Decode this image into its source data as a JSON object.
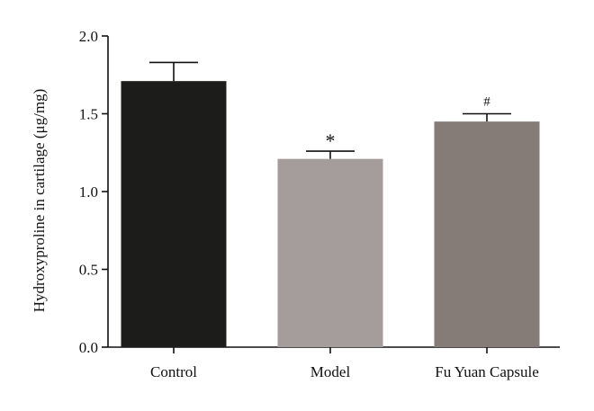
{
  "chart_data": {
    "type": "bar",
    "categories": [
      "Control",
      "Model",
      "Fu Yuan Capsule"
    ],
    "values": [
      1.71,
      1.21,
      1.45
    ],
    "errors": [
      0.12,
      0.05,
      0.05
    ],
    "annotations": [
      "",
      "*",
      "#"
    ],
    "colors": [
      "#1c1c1a",
      "#a59d9b",
      "#857c78"
    ],
    "ylabel": "Hydroxyproline in cartilage (μg/mg)",
    "ylim": [
      0,
      2.0
    ],
    "yticks": [
      0.0,
      0.5,
      1.0,
      1.5,
      2.0
    ],
    "ytick_labels": [
      "0.0",
      "0.5",
      "1.0",
      "1.5",
      "2.0"
    ],
    "grid": false
  }
}
